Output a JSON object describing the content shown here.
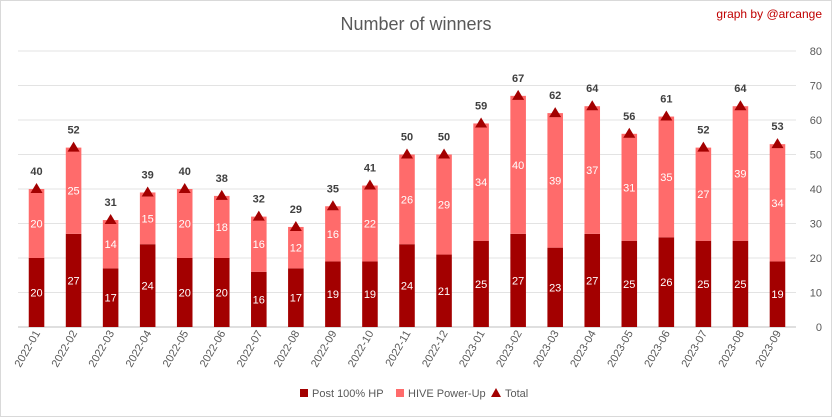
{
  "chart_data": {
    "type": "bar",
    "title": "Number of winners",
    "credit": "graph by @arcange",
    "categories": [
      "2022-01",
      "2022-02",
      "2022-03",
      "2022-04",
      "2022-05",
      "2022-06",
      "2022-07",
      "2022-08",
      "2022-09",
      "2022-10",
      "2022-11",
      "2022-12",
      "2023-01",
      "2023-02",
      "2023-03",
      "2023-04",
      "2023-05",
      "2023-06",
      "2023-07",
      "2023-08",
      "2023-09"
    ],
    "series": [
      {
        "name": "Post 100% HP",
        "kind": "stacked-bar",
        "color": "#a30000",
        "values": [
          20,
          27,
          17,
          24,
          20,
          20,
          16,
          17,
          19,
          19,
          24,
          21,
          25,
          27,
          23,
          27,
          25,
          26,
          25,
          25,
          19
        ]
      },
      {
        "name": "HIVE Power-Up",
        "kind": "stacked-bar",
        "color": "#ff6b6b",
        "values": [
          20,
          25,
          14,
          15,
          20,
          18,
          16,
          12,
          16,
          22,
          26,
          29,
          34,
          40,
          39,
          37,
          31,
          35,
          27,
          39,
          34
        ]
      },
      {
        "name": "Total",
        "kind": "triangle-marker",
        "color": "#a30000",
        "values": [
          40,
          52,
          31,
          39,
          40,
          38,
          32,
          29,
          35,
          41,
          50,
          50,
          59,
          67,
          62,
          64,
          56,
          61,
          52,
          64,
          53
        ]
      }
    ],
    "y_axis": {
      "side": "right",
      "ylim": [
        0,
        80
      ],
      "ticks": [
        0,
        10,
        20,
        30,
        40,
        50,
        60,
        70,
        80
      ]
    },
    "grid": true,
    "legend_position": "bottom"
  }
}
